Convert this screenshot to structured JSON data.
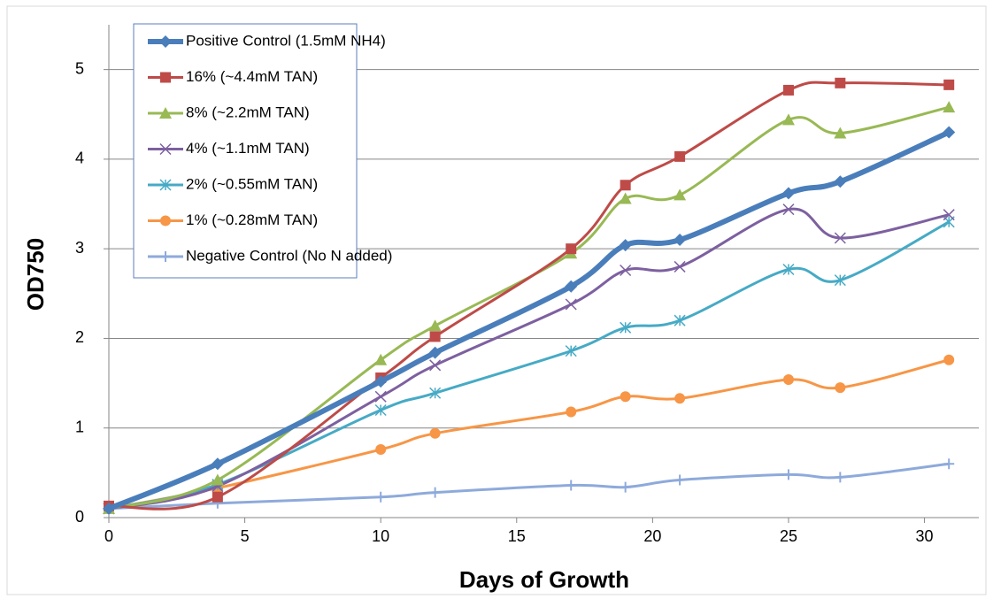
{
  "chart_data": {
    "type": "line",
    "smooth": true,
    "x_label": "Days of Growth",
    "y_label": "OD750",
    "x": [
      0,
      4,
      10,
      12,
      17,
      19,
      21,
      25,
      26.9,
      30.9
    ],
    "xlim": [
      0,
      32
    ],
    "xticks": [
      0,
      5,
      10,
      15,
      20,
      25,
      30
    ],
    "ylim": [
      0,
      5.5
    ],
    "yticks": [
      0,
      1,
      2,
      3,
      4,
      5
    ],
    "grid": true,
    "legend": "upper left",
    "series": [
      {
        "name": "Positive Control (1.5mM NH4)",
        "color": "#4a7ebb",
        "marker": "diamond",
        "width": 6,
        "values": [
          0.1,
          0.6,
          1.52,
          1.84,
          2.58,
          3.04,
          3.1,
          3.62,
          3.75,
          4.3
        ]
      },
      {
        "name": "16% (~4.4mM TAN)",
        "color": "#be4b48",
        "marker": "square",
        "width": 3,
        "values": [
          0.13,
          0.23,
          1.56,
          2.02,
          3.0,
          3.71,
          4.03,
          4.77,
          4.85,
          4.83
        ]
      },
      {
        "name": "8% (~2.2mM TAN)",
        "color": "#98b954",
        "marker": "triangle",
        "width": 3,
        "values": [
          0.1,
          0.42,
          1.76,
          2.14,
          2.95,
          3.56,
          3.6,
          4.44,
          4.29,
          4.58
        ]
      },
      {
        "name": "4% (~1.1mM TAN)",
        "color": "#7d60a0",
        "marker": "x",
        "width": 3,
        "values": [
          0.1,
          0.35,
          1.35,
          1.7,
          2.38,
          2.76,
          2.8,
          3.44,
          3.12,
          3.38
        ]
      },
      {
        "name": "2% (~0.55mM TAN)",
        "color": "#46aac5",
        "marker": "star",
        "width": 3,
        "values": [
          0.1,
          0.37,
          1.2,
          1.39,
          1.86,
          2.12,
          2.2,
          2.77,
          2.65,
          3.3
        ]
      },
      {
        "name": "1% (~0.28mM TAN)",
        "color": "#f79646",
        "marker": "circle",
        "width": 3,
        "values": [
          0.1,
          0.33,
          0.76,
          0.94,
          1.18,
          1.35,
          1.33,
          1.54,
          1.45,
          1.76
        ]
      },
      {
        "name": "Negative Control (No N added)",
        "color": "#8eaadb",
        "marker": "plus",
        "width": 3,
        "values": [
          0.1,
          0.16,
          0.23,
          0.28,
          0.36,
          0.34,
          0.42,
          0.48,
          0.45,
          0.6
        ]
      }
    ]
  }
}
